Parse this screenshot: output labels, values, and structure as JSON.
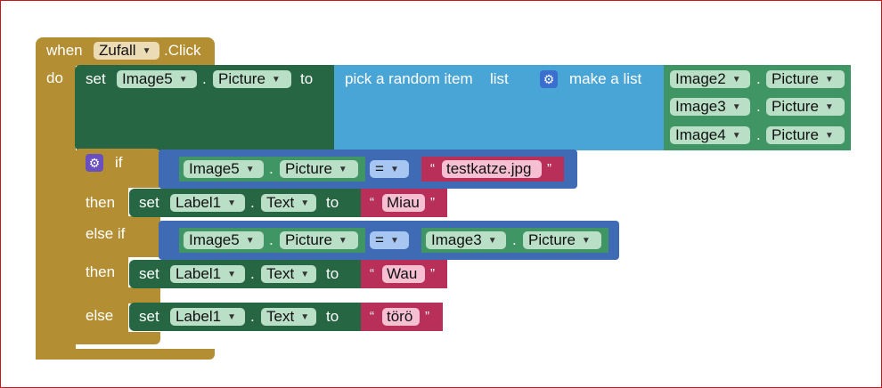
{
  "event": {
    "when_label": "when",
    "component": "Zufall",
    "event_suffix": ".Click",
    "do_label": "do"
  },
  "set_image": {
    "set_label": "set",
    "component": "Image5",
    "property": "Picture",
    "to_label": "to"
  },
  "random_pick": {
    "label": "pick a random item",
    "list_label": "list"
  },
  "make_list": {
    "label": "make a list",
    "items": [
      {
        "component": "Image2",
        "property": "Picture"
      },
      {
        "component": "Image3",
        "property": "Picture"
      },
      {
        "component": "Image4",
        "property": "Picture"
      }
    ]
  },
  "if_block": {
    "if_label": "if",
    "then_label": "then",
    "elseif_label": "else if",
    "else_label": "else"
  },
  "cond1": {
    "component": "Image5",
    "property": "Picture",
    "op": "=",
    "string": "testkatze.jpg"
  },
  "cond2": {
    "component": "Image5",
    "property": "Picture",
    "op": "=",
    "right_component": "Image3",
    "right_property": "Picture"
  },
  "set_label1": {
    "set_label": "set",
    "component": "Label1",
    "property": "Text",
    "to_label": "to",
    "value": "Miau"
  },
  "set_label2": {
    "set_label": "set",
    "component": "Label1",
    "property": "Text",
    "to_label": "to",
    "value": "Wau"
  },
  "set_label3": {
    "set_label": "set",
    "component": "Label1",
    "property": "Text",
    "to_label": "to",
    "value": "törö"
  },
  "glyphs": {
    "dot": ".",
    "quote_open": "“",
    "quote_close": "”",
    "dropdown": "▼",
    "gear": "⚙"
  },
  "colors": {
    "control": "#b38e32",
    "set": "#266642",
    "list": "#4aa5d7",
    "logic": "#3f6ab4",
    "text": "#b8305a",
    "component": "#3f9563",
    "compare_pill": "#a7c6f1",
    "border": "#c8171a"
  }
}
